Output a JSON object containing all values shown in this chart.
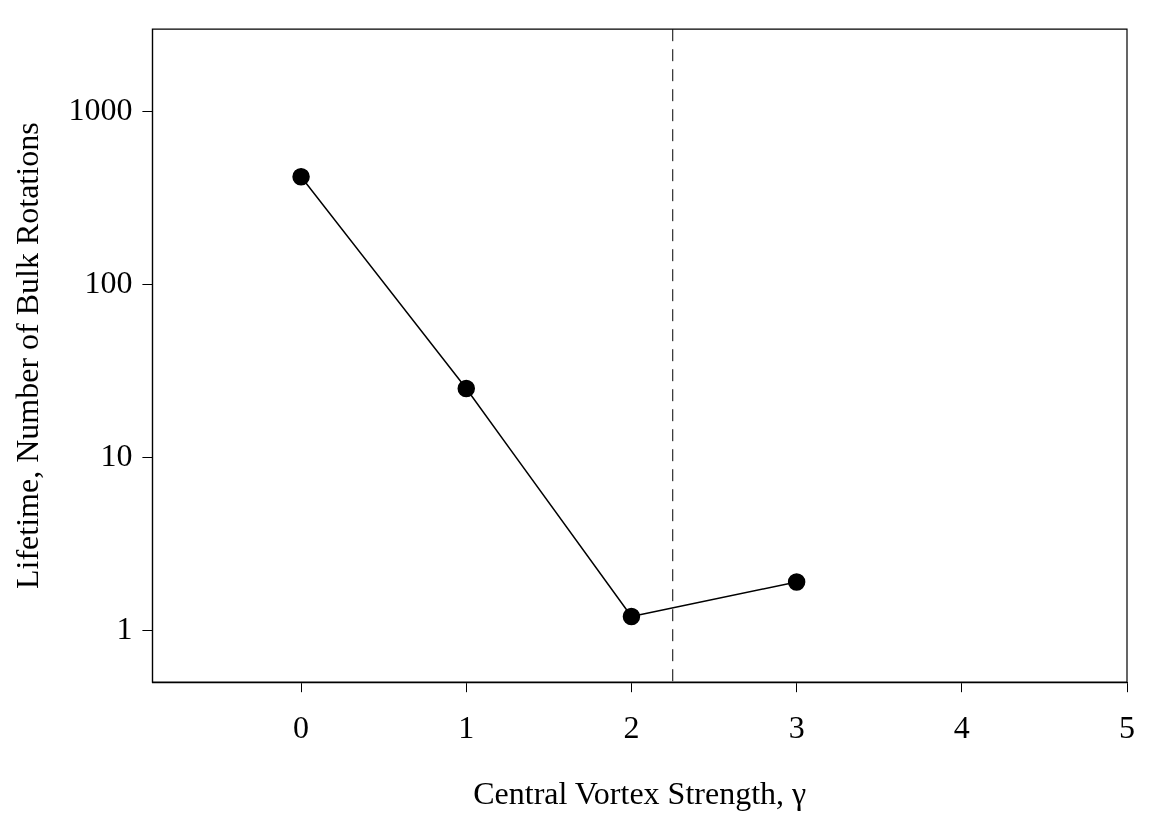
{
  "chart_data": {
    "type": "line",
    "xlabel": "Central Vortex Strength, γ",
    "ylabel": "Lifetime, Number of Bulk Rotations",
    "x": [
      0,
      1,
      2,
      3
    ],
    "series": [
      {
        "color": "#000000",
        "values": [
          420,
          25,
          1.2,
          1.9
        ]
      }
    ],
    "xlim": [
      -0.9,
      5
    ],
    "xticks": [
      0,
      1,
      2,
      3,
      4,
      5
    ],
    "ylim": [
      0.5,
      3000
    ],
    "yticks": [
      1,
      10,
      100,
      1000
    ],
    "log": "y",
    "marker": "circle",
    "line_style": "solid",
    "grid": false,
    "legend": false,
    "ref_lines": [
      {
        "axis": "x",
        "value": 2.25,
        "color": "#000000",
        "line_style": "dashed"
      }
    ]
  }
}
